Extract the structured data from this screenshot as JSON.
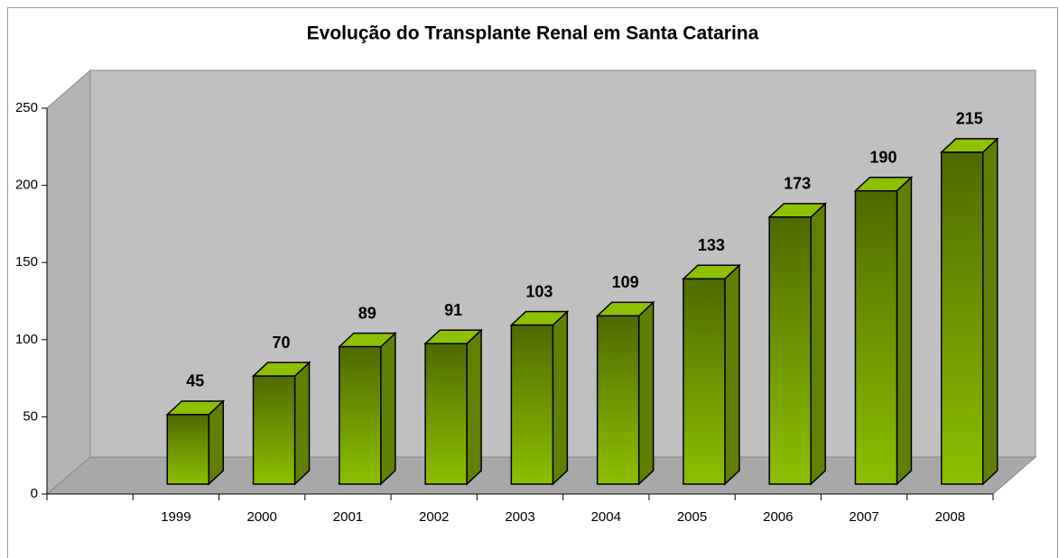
{
  "chart_data": {
    "type": "bar",
    "title": "Evolução do Transplante Renal em Santa Catarina",
    "categories": [
      "1999",
      "2000",
      "2001",
      "2002",
      "2003",
      "2004",
      "2005",
      "2006",
      "2007",
      "2008"
    ],
    "values": [
      45,
      70,
      89,
      91,
      103,
      109,
      133,
      173,
      190,
      215
    ],
    "color": "#8cc000",
    "ylim": [
      0,
      250
    ],
    "yticks": [
      0,
      50,
      100,
      150,
      200,
      250
    ]
  }
}
